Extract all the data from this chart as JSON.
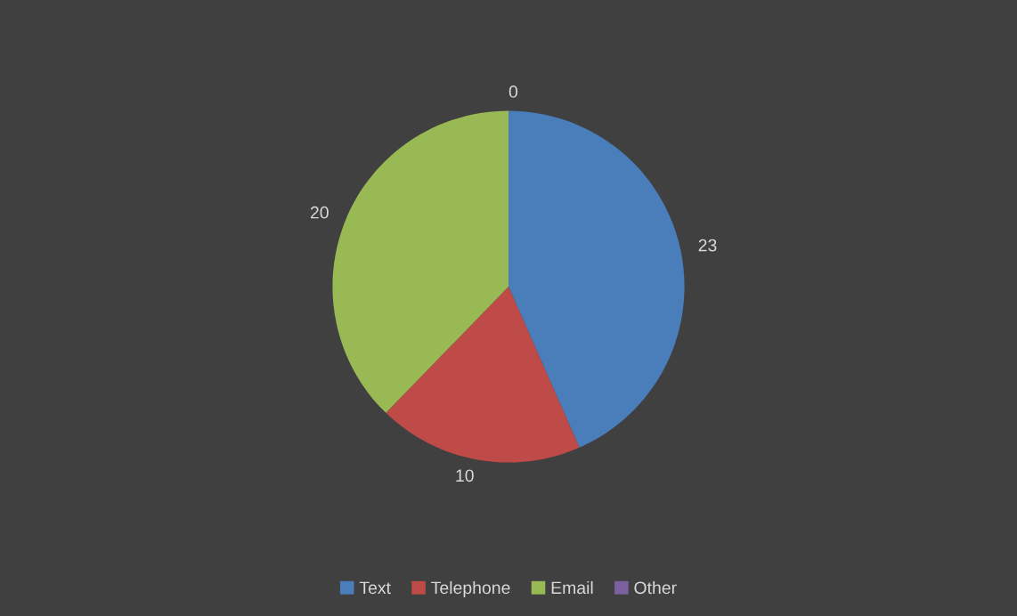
{
  "chart_data": {
    "type": "pie",
    "categories": [
      "Text",
      "Telephone",
      "Email",
      "Other"
    ],
    "values": [
      23,
      10,
      20,
      0
    ],
    "colors": [
      "#4a7ebb",
      "#be4b48",
      "#98b954",
      "#7d60a0"
    ],
    "value_labels": [
      "23",
      "10",
      "20",
      "0"
    ],
    "legend": "bottom"
  }
}
